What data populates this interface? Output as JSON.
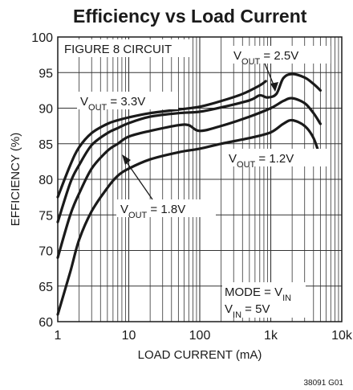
{
  "chart_data": {
    "type": "line",
    "title": "Efficiency vs Load Current",
    "xlabel": "LOAD CURRENT (mA)",
    "ylabel": "EFFICIENCY (%)",
    "x_scale": "log",
    "xlim": [
      1,
      10000
    ],
    "ylim": [
      60,
      100
    ],
    "x_ticks": [
      "1",
      "10",
      "100",
      "1k",
      "10k"
    ],
    "y_ticks": [
      "60",
      "65",
      "70",
      "75",
      "80",
      "85",
      "90",
      "95",
      "100"
    ],
    "grid": true,
    "series": [
      {
        "name": "VOUT = 3.3V",
        "x": [
          1,
          1.5,
          2,
          3,
          5,
          7,
          10,
          20,
          50,
          100,
          200,
          400,
          700,
          850
        ],
        "y": [
          77.5,
          82,
          84.5,
          86.5,
          87.8,
          88.3,
          88.7,
          89.3,
          89.8,
          90.2,
          91,
          92,
          93.2,
          93.8
        ]
      },
      {
        "name": "VOUT = 2.5V",
        "x": [
          1,
          1.5,
          2,
          3,
          5,
          7,
          10,
          20,
          50,
          100,
          200,
          500,
          700,
          900,
          1200,
          1500,
          2000,
          3000,
          4000,
          5000
        ],
        "y": [
          74,
          79.5,
          82,
          84.8,
          86.5,
          87.2,
          87.9,
          88.8,
          89.3,
          89.5,
          90.1,
          91.1,
          91.8,
          91.5,
          92,
          94.2,
          94.8,
          94.3,
          93.4,
          92.5
        ]
      },
      {
        "name": "VOUT = 1.8V",
        "x": [
          1,
          1.5,
          2,
          3,
          5,
          7,
          10,
          20,
          50,
          70,
          100,
          200,
          500,
          1000,
          1500,
          2000,
          3000,
          4000,
          5000
        ],
        "y": [
          69,
          75,
          78,
          81.5,
          84,
          85,
          86,
          86.8,
          87.6,
          87.6,
          86.8,
          87.5,
          88.8,
          90,
          91,
          91.4,
          90.7,
          89.3,
          87.8
        ]
      },
      {
        "name": "VOUT = 1.2V",
        "x": [
          1,
          1.5,
          2,
          3,
          5,
          7,
          10,
          20,
          50,
          100,
          200,
          500,
          1000,
          1500,
          2000,
          3000,
          4000,
          5000
        ],
        "y": [
          61,
          67,
          71.5,
          75.5,
          78.8,
          80.5,
          81.5,
          82.8,
          83.8,
          84.3,
          85,
          85.8,
          86.6,
          87.8,
          88.3,
          87.5,
          85.8,
          83
        ]
      }
    ],
    "annotations": {
      "figure": "FIGURE 8 CIRCUIT",
      "mode": "MODE = VIN",
      "vin": "VIN = 5V"
    },
    "footer_code": "38091 G01"
  }
}
